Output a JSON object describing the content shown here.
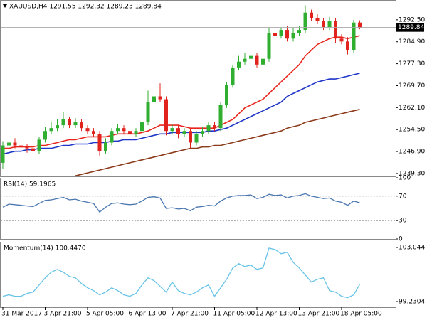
{
  "chart_data": [
    {
      "type": "candlestick",
      "title": "XAUUSD,H4  1291.55 1292.32 1289.23 1289.84",
      "categories": [
        "31 Mar 2017",
        null,
        null,
        null,
        null,
        null,
        null,
        "3 Apr 21:00",
        null,
        null,
        null,
        null,
        null,
        null,
        "5 Apr 05:00",
        null,
        null,
        null,
        null,
        null,
        null,
        "6 Apr 13:00",
        null,
        null,
        null,
        null,
        null,
        null,
        "7 Apr 21:00",
        null,
        null,
        null,
        null,
        null,
        null,
        "11 Apr 05:00",
        null,
        null,
        null,
        null,
        null,
        null,
        "12 Apr 13:00",
        null,
        null,
        null,
        null,
        null,
        null,
        "13 Apr 21:00",
        null,
        null,
        null,
        null,
        null,
        null,
        "18 Apr 05:00",
        null,
        null,
        null
      ],
      "open": [
        1243,
        1249,
        1250,
        1249,
        1248.5,
        1248,
        1247,
        1251,
        1254,
        1255,
        1256,
        1258,
        1256,
        1257,
        1255,
        1254,
        1253,
        1247,
        1250,
        1254,
        1255,
        1254,
        1253,
        1254,
        1257,
        1264,
        1266,
        1265,
        1254,
        1255,
        1253,
        1254,
        1250,
        1253,
        1254,
        1256,
        1255,
        1263,
        1270,
        1276,
        1278,
        1279,
        1280,
        1277,
        1279,
        1288,
        1287,
        1289,
        1286,
        1288,
        1289,
        1295,
        1293,
        1292,
        1290,
        1292,
        1286,
        1285,
        1282,
        1291.55
      ],
      "high": [
        1250.5,
        1251,
        1251.5,
        1250,
        1249.5,
        1249,
        1252,
        1255.5,
        1257,
        1258,
        1260.5,
        1259,
        1258.5,
        1258,
        1256,
        1255,
        1254,
        1251.5,
        1255,
        1256.5,
        1256,
        1255,
        1255,
        1258,
        1268,
        1267.5,
        1270.5,
        1266,
        1256.5,
        1256,
        1255,
        1255,
        1254,
        1255.5,
        1257,
        1257,
        1264,
        1271,
        1277,
        1280,
        1281,
        1281.5,
        1281,
        1280.5,
        1290,
        1289.5,
        1290,
        1290.5,
        1289.5,
        1290.5,
        1297.5,
        1296,
        1294.5,
        1293,
        1293.5,
        1293,
        1287.5,
        1286.5,
        1292.5,
        1292.32
      ],
      "low": [
        1241,
        1248,
        1248,
        1247.5,
        1246.5,
        1245.5,
        1246,
        1250,
        1253,
        1254,
        1255,
        1255,
        1255,
        1254,
        1253,
        1252,
        1245.5,
        1246,
        1249,
        1253,
        1253,
        1252,
        1252,
        1253,
        1256,
        1263,
        1264,
        1252.5,
        1253,
        1251.5,
        1252,
        1248,
        1249,
        1252,
        1253,
        1254,
        1254,
        1262,
        1269,
        1275,
        1277,
        1278,
        1276,
        1276,
        1278,
        1286,
        1286,
        1285,
        1285,
        1287,
        1288,
        1292,
        1291,
        1289,
        1289,
        1284.5,
        1284,
        1280.5,
        1281,
        1289.23
      ],
      "close": [
        1249,
        1250,
        1249,
        1248.5,
        1248,
        1247,
        1251,
        1254,
        1255,
        1256,
        1258,
        1256,
        1257,
        1255,
        1254,
        1253,
        1247,
        1250,
        1254,
        1255,
        1254,
        1253,
        1254,
        1257,
        1264,
        1266,
        1265,
        1254,
        1255,
        1253,
        1254,
        1250,
        1253,
        1254,
        1256,
        1255,
        1263,
        1270,
        1276,
        1278,
        1279,
        1280,
        1277,
        1279,
        1288,
        1287,
        1289,
        1286,
        1288,
        1289,
        1295,
        1293,
        1292,
        1290,
        1292,
        1286,
        1285,
        1282,
        1291.55,
        1289.84
      ],
      "up_color": "#2fae2f",
      "down_color": "#e0231c",
      "overlays": [
        {
          "color": "#e8261e",
          "values": [
            1248,
            1248,
            1248.5,
            1248.5,
            1248.5,
            1248.5,
            1249,
            1249,
            1249.5,
            1250,
            1250.5,
            1251,
            1251,
            1251.5,
            1252,
            1252,
            1252,
            1252,
            1252.5,
            1253,
            1253,
            1253,
            1253,
            1253.5,
            1254,
            1255,
            1256,
            1256,
            1256,
            1256,
            1255.5,
            1255,
            1255,
            1255,
            1255,
            1255,
            1256,
            1257,
            1258,
            1260,
            1262,
            1263,
            1264,
            1265,
            1267,
            1269,
            1271,
            1273,
            1275,
            1277,
            1280,
            1282,
            1284,
            1285,
            1286,
            1286.5,
            1286.5,
            1286,
            1286.5,
            1287
          ]
        },
        {
          "color": "#1f35c8",
          "values": [
            1246,
            1246.5,
            1247,
            1247,
            1247.5,
            1247.5,
            1248,
            1248,
            1248,
            1248.5,
            1249,
            1249,
            1249.5,
            1249.5,
            1249.5,
            1250,
            1250,
            1250,
            1250.5,
            1250.5,
            1251,
            1251,
            1251,
            1251.5,
            1252,
            1252.5,
            1253,
            1253,
            1253.5,
            1253.5,
            1253.5,
            1253.5,
            1253.5,
            1253.5,
            1254,
            1254,
            1254.5,
            1255,
            1256,
            1257,
            1258,
            1259,
            1260,
            1261,
            1262,
            1263,
            1264,
            1266,
            1267,
            1268,
            1269,
            1270,
            1271,
            1271.5,
            1272,
            1272,
            1272.5,
            1273,
            1273.5,
            1274
          ]
        },
        {
          "color": "#8b3a1a",
          "values": [
            null,
            null,
            null,
            null,
            null,
            null,
            null,
            null,
            null,
            null,
            null,
            null,
            1238.5,
            1239,
            1239.5,
            1240,
            1240.5,
            1241,
            1241.5,
            1242,
            1242.5,
            1243,
            1243.5,
            1244,
            1244.5,
            1245,
            1245.5,
            1246,
            1246.5,
            1247,
            1247.5,
            1248,
            1248,
            1248.5,
            1248.5,
            1249,
            1249,
            1249.5,
            1250,
            1250.5,
            1251,
            1251.5,
            1252,
            1252.5,
            1253,
            1253.5,
            1254,
            1255,
            1255.5,
            1256,
            1257,
            1257.5,
            1258,
            1258.5,
            1259,
            1259.5,
            1260,
            1260.5,
            1261,
            1261.5
          ]
        }
      ],
      "ylim": [
        1238.3,
        1299.36
      ],
      "yticks": [
        {
          "value": 1292.5,
          "label": "1292.50"
        },
        {
          "value": 1284.9,
          "label": "1284.90"
        },
        {
          "value": 1277.3,
          "label": "1277.30"
        },
        {
          "value": 1269.7,
          "label": "1269.70"
        },
        {
          "value": 1262.1,
          "label": "1262.10"
        },
        {
          "value": 1254.5,
          "label": "1254.50"
        },
        {
          "value": 1246.9,
          "label": "1246.90"
        },
        {
          "value": 1239.3,
          "label": "1239.30"
        }
      ]
    },
    {
      "type": "line",
      "title": "RSI(14) 59.1965",
      "color": "#4a76b0",
      "values": [
        52,
        57,
        56,
        55,
        54,
        53,
        58,
        63,
        64,
        66,
        68,
        64,
        65,
        62,
        60,
        58,
        44,
        52,
        58,
        59,
        57,
        56,
        57,
        62,
        68,
        69,
        67,
        50,
        51,
        49,
        50,
        46,
        52,
        53,
        55,
        54,
        62,
        67,
        70,
        71,
        71,
        72,
        66,
        68,
        73,
        71,
        72,
        67,
        70,
        71,
        74,
        70,
        68,
        66,
        67,
        62,
        60,
        55,
        62,
        59.1965
      ],
      "ylim": [
        0,
        100
      ],
      "yticks": [
        100,
        70,
        30,
        0
      ],
      "levels": [
        70,
        30
      ]
    },
    {
      "type": "line",
      "title": "Momentum(14) 100.4470",
      "color": "#66c3e8",
      "values": [
        99.6,
        99.7,
        99.6,
        99.6,
        99.8,
        99.9,
        100.4,
        100.9,
        101.3,
        101.5,
        101.3,
        101.0,
        100.9,
        100.5,
        100.2,
        100.0,
        99.7,
        99.9,
        100.2,
        100.0,
        99.7,
        99.6,
        99.8,
        100.4,
        100.9,
        100.7,
        100.3,
        99.9,
        100.6,
        100.0,
        99.8,
        99.7,
        99.9,
        100.2,
        100.4,
        99.6,
        100.2,
        100.8,
        101.6,
        101.9,
        101.7,
        101.8,
        101.5,
        101.6,
        103.0,
        102.9,
        102.6,
        102.7,
        102.0,
        101.6,
        101.1,
        100.6,
        100.8,
        100.9,
        100.0,
        99.9,
        99.6,
        99.5,
        99.7,
        100.447
      ],
      "ylim": [
        98.829,
        103.445
      ],
      "yticks": [
        103.044,
        99.2304
      ]
    }
  ]
}
